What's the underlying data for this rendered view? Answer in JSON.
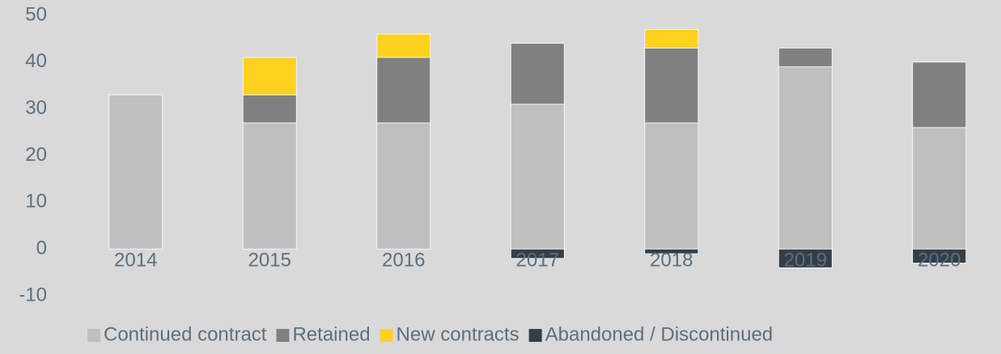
{
  "chart_data": {
    "type": "bar",
    "stacked": true,
    "categories": [
      "2014",
      "2015",
      "2016",
      "2017",
      "2018",
      "2019",
      "2020"
    ],
    "series": [
      {
        "name": "Continued contract",
        "color": "#bfbfbf",
        "values": [
          33,
          27,
          27,
          31,
          27,
          39,
          26
        ]
      },
      {
        "name": "Retained",
        "color": "#808080",
        "values": [
          0,
          6,
          14,
          13,
          16,
          4,
          14
        ]
      },
      {
        "name": "New contracts",
        "color": "#ffd21f",
        "values": [
          0,
          8,
          5,
          0,
          4,
          0,
          0
        ]
      },
      {
        "name": "Abandoned / Discontinued",
        "color": "#333f48",
        "values": [
          0,
          0,
          0,
          -2,
          -1,
          -4,
          -3
        ]
      }
    ],
    "ylim": [
      -10,
      50
    ],
    "yticks": [
      -10,
      0,
      10,
      20,
      30,
      40,
      50
    ],
    "grid": false,
    "legend": "bottom"
  }
}
